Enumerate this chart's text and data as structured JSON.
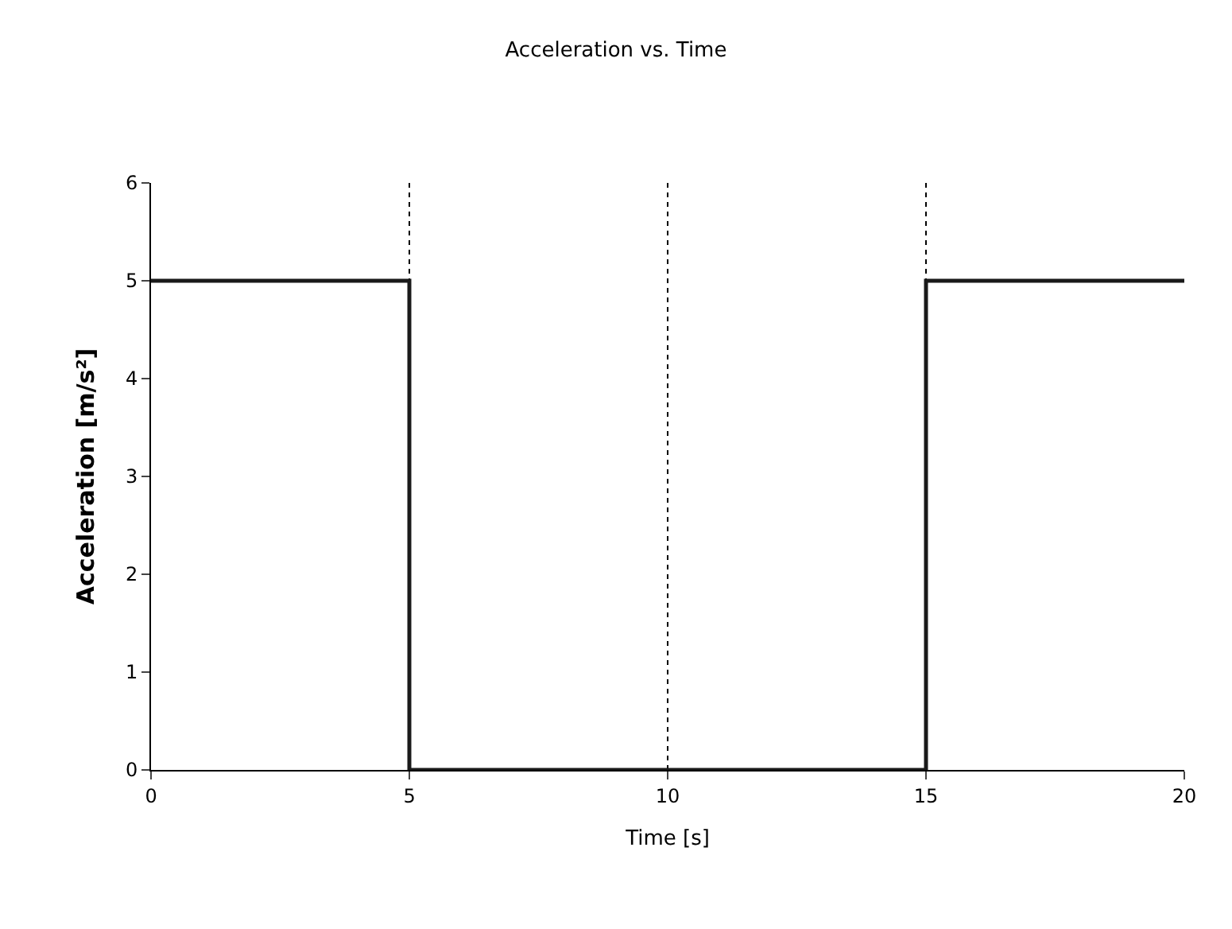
{
  "chart_data": {
    "type": "step",
    "title": "Acceleration vs. Time",
    "xlabel": "Time [s]",
    "ylabel": "Acceleration [m/s²]",
    "x": [
      0,
      5,
      15,
      20
    ],
    "series": [
      {
        "color": "#1a1a1a",
        "values": [
          5,
          0,
          5,
          5
        ]
      }
    ],
    "xlim": [
      0,
      20
    ],
    "xticks": [
      0,
      5,
      10,
      15,
      20
    ],
    "ylim": [
      0,
      6
    ],
    "yticks": [
      0,
      1,
      2,
      3,
      4,
      5,
      6
    ],
    "grid": "x",
    "legend": false,
    "marker": "none",
    "line_style": "solid"
  }
}
